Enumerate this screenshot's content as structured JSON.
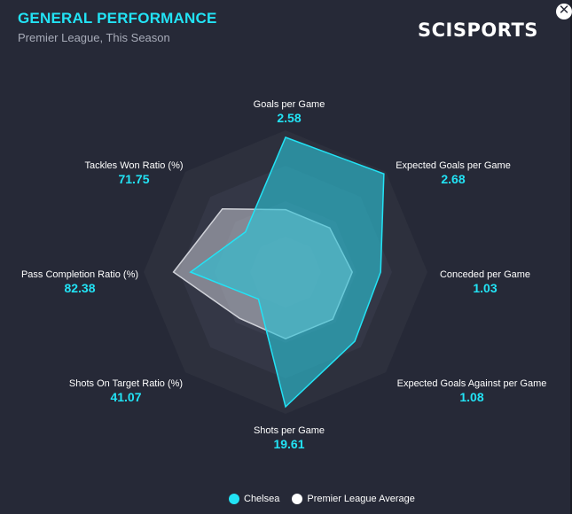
{
  "header": {
    "title": "GENERAL PERFORMANCE",
    "subtitle": "Premier League, This Season",
    "brand": "SCISPORTS",
    "close_icon": "close-icon"
  },
  "colors": {
    "accent": "#22e3f5",
    "team_fill": "#2bc4d6",
    "team_stroke": "#22e3f5",
    "average_fill": "#b8bac4",
    "background": "#262937"
  },
  "chart_data": {
    "type": "radar",
    "axes": [
      {
        "label": "Goals per Game",
        "value_label": "2.58"
      },
      {
        "label": "Expected Goals per Game",
        "value_label": "2.68"
      },
      {
        "label": "Conceded per Game",
        "value_label": "1.03"
      },
      {
        "label": "Expected Goals Against per Game",
        "value_label": "1.08"
      },
      {
        "label": "Shots per Game",
        "value_label": "19.61"
      },
      {
        "label": "Shots On Target Ratio (%)",
        "value_label": "41.07"
      },
      {
        "label": "Pass Completion Ratio (%)",
        "value_label": "82.38"
      },
      {
        "label": "Tackles Won Ratio (%)",
        "value_label": "71.75"
      }
    ],
    "scale": [
      0,
      1
    ],
    "rings": 4,
    "series": [
      {
        "name": "Chelsea",
        "values": [
          0.95,
          0.98,
          0.67,
          0.69,
          0.95,
          0.27,
          0.67,
          0.4
        ]
      },
      {
        "name": "Premier League Average",
        "values": [
          0.44,
          0.44,
          0.47,
          0.47,
          0.47,
          0.46,
          0.79,
          0.63
        ]
      }
    ],
    "legend": [
      "Chelsea",
      "Premier League Average"
    ]
  }
}
